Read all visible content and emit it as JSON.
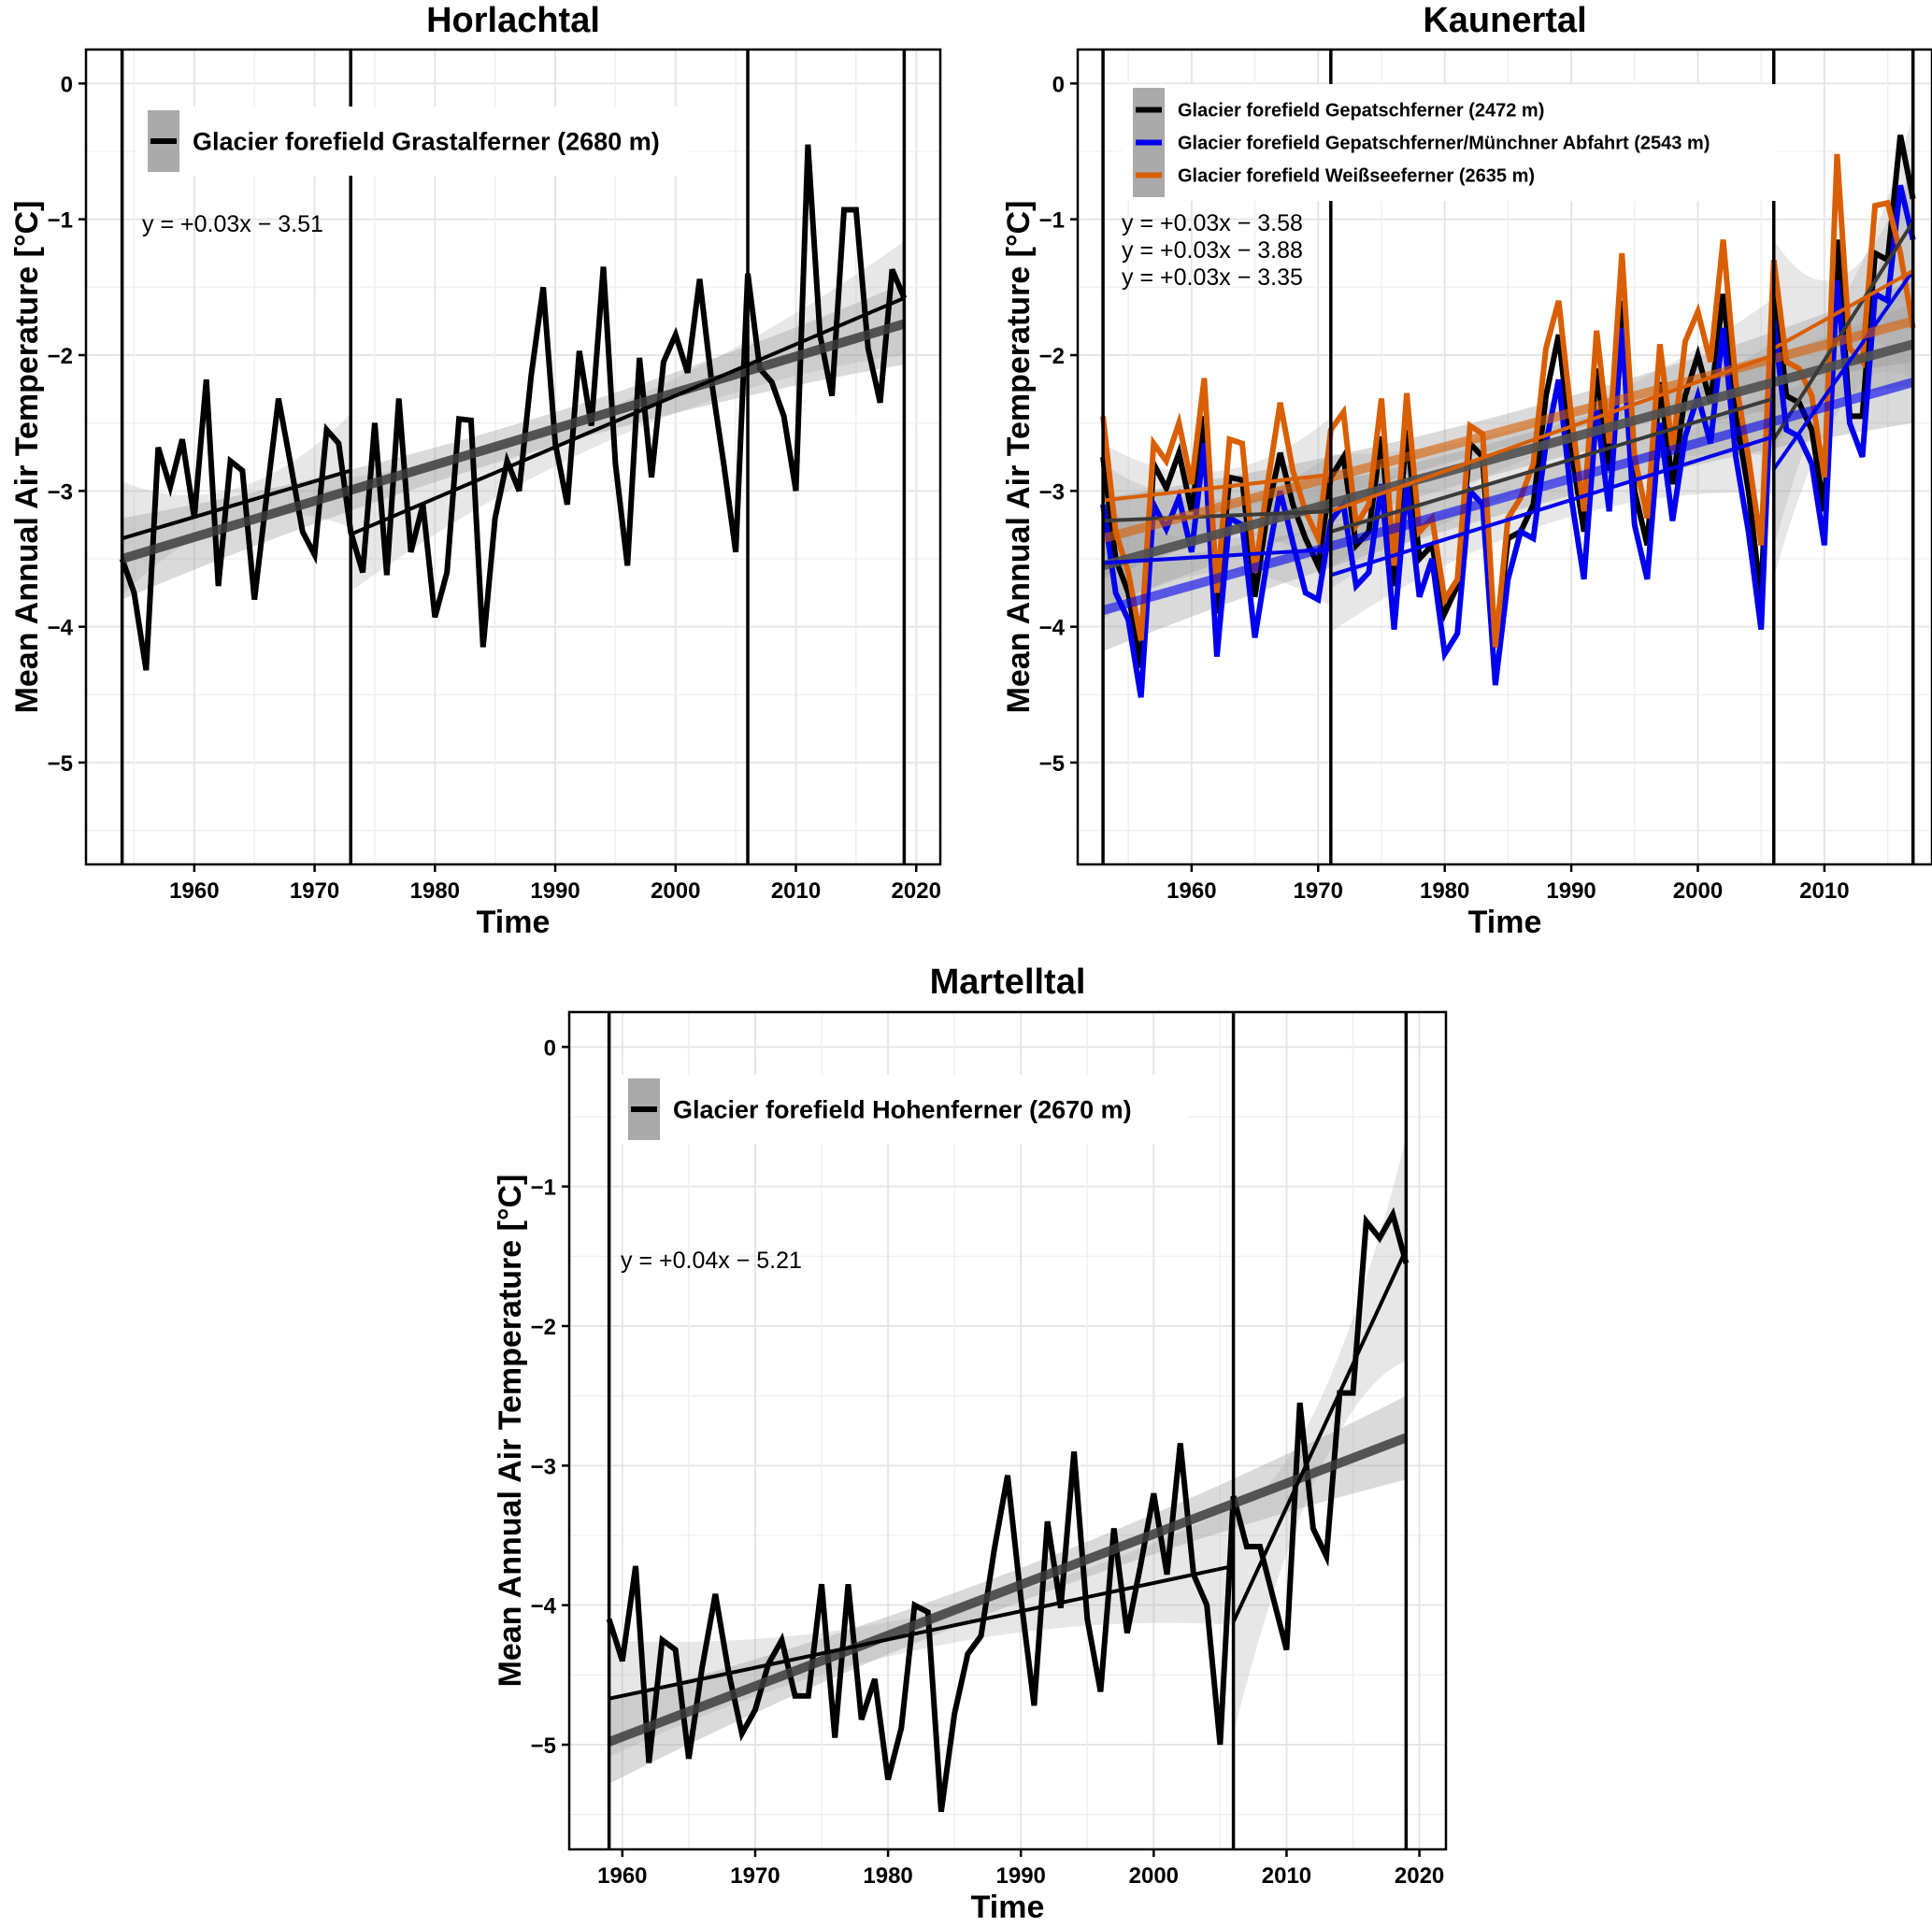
{
  "chart_data": [
    {
      "type": "line",
      "title": "Horlachtal",
      "xlabel": "Time",
      "ylabel": "Mean Annual Air Temperature [°C]",
      "xlim": [
        1951,
        2022
      ],
      "ylim": [
        -5.75,
        0.25
      ],
      "xticks": [
        1960,
        1970,
        1980,
        1990,
        2000,
        2010,
        2020
      ],
      "yticks": [
        0,
        -1,
        -2,
        -3,
        -4,
        -5
      ],
      "ytick_labels": [
        "0",
        "−1",
        "−2",
        "−3",
        "−4",
        "−5"
      ],
      "grid": true,
      "legend_position": "top-left",
      "breakpoints": [
        1954,
        1973,
        2006,
        2019
      ],
      "equations": [
        "y = +0.03x − 3.51"
      ],
      "series": [
        {
          "name": "Glacier forefield Grastalferner (2680 m)",
          "color": "#000000",
          "x": [
            1954,
            1955,
            1956,
            1957,
            1958,
            1959,
            1960,
            1961,
            1962,
            1963,
            1964,
            1965,
            1966,
            1967,
            1968,
            1969,
            1970,
            1971,
            1972,
            1973,
            1974,
            1975,
            1976,
            1977,
            1978,
            1979,
            1980,
            1981,
            1982,
            1983,
            1984,
            1985,
            1986,
            1987,
            1988,
            1989,
            1990,
            1991,
            1992,
            1993,
            1994,
            1995,
            1996,
            1997,
            1998,
            1999,
            2000,
            2001,
            2002,
            2003,
            2004,
            2005,
            2006,
            2007,
            2008,
            2009,
            2010,
            2011,
            2012,
            2013,
            2014,
            2015,
            2016,
            2017,
            2018,
            2019
          ],
          "values": [
            -3.5,
            -3.75,
            -4.32,
            -2.68,
            -2.97,
            -2.62,
            -3.2,
            -2.18,
            -3.7,
            -2.78,
            -2.85,
            -3.8,
            -3.05,
            -2.32,
            -2.8,
            -3.3,
            -3.47,
            -2.55,
            -2.65,
            -3.3,
            -3.6,
            -2.5,
            -3.62,
            -2.32,
            -3.45,
            -3.1,
            -3.93,
            -3.6,
            -2.47,
            -2.48,
            -4.15,
            -3.2,
            -2.78,
            -3.0,
            -2.15,
            -1.5,
            -2.65,
            -3.1,
            -1.97,
            -2.52,
            -1.35,
            -2.8,
            -3.55,
            -2.02,
            -2.9,
            -2.05,
            -1.85,
            -2.13,
            -1.44,
            -2.2,
            -2.8,
            -3.45,
            -1.4,
            -2.1,
            -2.2,
            -2.45,
            -3.0,
            -0.45,
            -1.85,
            -2.3,
            -0.93,
            -0.93,
            -1.95,
            -2.35,
            -1.37,
            -1.58
          ],
          "overall_trend": {
            "x": [
              1954,
              2019
            ],
            "y": [
              -3.5,
              -1.77
            ],
            "ci_halfwidth": [
              0.22,
              0.22
            ]
          },
          "segment_trends": [
            {
              "x": [
                1954,
                1973
              ],
              "y": [
                -3.35,
                -2.85
              ]
            },
            {
              "x": [
                1973,
                2019
              ],
              "y": [
                -3.32,
                -1.58
              ]
            }
          ]
        }
      ]
    },
    {
      "type": "line",
      "title": "Kaunertal",
      "xlabel": "Time",
      "ylabel": "Mean Annual Air Temperature [°C]",
      "xlim": [
        1951,
        2018.5
      ],
      "ylim": [
        -5.75,
        0.25
      ],
      "xticks": [
        1960,
        1970,
        1980,
        1990,
        2000,
        2010
      ],
      "yticks": [
        0,
        -1,
        -2,
        -3,
        -4,
        -5
      ],
      "ytick_labels": [
        "0",
        "−1",
        "−2",
        "−3",
        "−4",
        "−5"
      ],
      "grid": true,
      "legend_position": "top-left",
      "breakpoints": [
        1953,
        1971,
        2006,
        2017
      ],
      "equations": [
        "y = +0.03x − 3.58",
        "y = +0.03x − 3.88",
        "y = +0.03x − 3.35"
      ],
      "series": [
        {
          "name": "Glacier forefield Gepatschferner (2472 m)",
          "color": "#000000",
          "x": [
            1953,
            1954,
            1955,
            1956,
            1957,
            1958,
            1959,
            1960,
            1961,
            1962,
            1963,
            1964,
            1965,
            1966,
            1967,
            1968,
            1969,
            1970,
            1971,
            1972,
            1973,
            1974,
            1975,
            1976,
            1977,
            1978,
            1979,
            1980,
            1981,
            1982,
            1983,
            1984,
            1985,
            1986,
            1987,
            1988,
            1989,
            1990,
            1991,
            1992,
            1993,
            1994,
            1995,
            1996,
            1997,
            1998,
            1999,
            2000,
            2001,
            2002,
            2003,
            2004,
            2005,
            2006,
            2007,
            2008,
            2009,
            2010,
            2011,
            2012,
            2013,
            2014,
            2015,
            2016,
            2017
          ],
          "values": [
            -2.75,
            -3.5,
            -3.75,
            -4.3,
            -2.8,
            -2.98,
            -2.72,
            -3.15,
            -2.45,
            -3.9,
            -2.9,
            -2.92,
            -3.78,
            -3.15,
            -2.72,
            -3.1,
            -3.35,
            -3.55,
            -2.9,
            -2.75,
            -3.4,
            -3.3,
            -2.6,
            -3.7,
            -2.55,
            -3.5,
            -3.4,
            -3.9,
            -3.7,
            -2.65,
            -2.75,
            -4.15,
            -3.35,
            -3.3,
            -3.1,
            -2.3,
            -1.85,
            -2.7,
            -3.3,
            -2.1,
            -2.85,
            -1.6,
            -3.0,
            -3.4,
            -2.2,
            -2.95,
            -2.3,
            -2.0,
            -2.35,
            -1.55,
            -2.45,
            -3.0,
            -3.8,
            -1.45,
            -2.3,
            -2.35,
            -2.55,
            -3.15,
            -1.15,
            -2.45,
            -2.45,
            -1.25,
            -1.3,
            -0.38,
            -0.85
          ],
          "overall_trend": {
            "x": [
              1953,
              2017
            ],
            "y": [
              -3.55,
              -1.92
            ]
          },
          "segment_trends": [
            {
              "x": [
                1953,
                1971
              ],
              "y": [
                -3.22,
                -3.15
              ]
            },
            {
              "x": [
                1971,
                2006
              ],
              "y": [
                -3.3,
                -2.32
              ]
            },
            {
              "x": [
                2006,
                2017
              ],
              "y": [
                -2.62,
                -1.02
              ]
            }
          ]
        },
        {
          "name": "Glacier forefield Gepatschferner/Münchner Abfahrt (2543 m)",
          "color": "#0000ee",
          "x": [
            1953,
            1954,
            1955,
            1956,
            1957,
            1958,
            1959,
            1960,
            1961,
            1962,
            1963,
            1964,
            1965,
            1966,
            1967,
            1968,
            1969,
            1970,
            1971,
            1972,
            1973,
            1974,
            1975,
            1976,
            1977,
            1978,
            1979,
            1980,
            1981,
            1982,
            1983,
            1984,
            1985,
            1986,
            1987,
            1988,
            1989,
            1990,
            1991,
            1992,
            1993,
            1994,
            1995,
            1996,
            1997,
            1998,
            1999,
            2000,
            2001,
            2002,
            2003,
            2004,
            2005,
            2006,
            2007,
            2008,
            2009,
            2010,
            2011,
            2012,
            2013,
            2014,
            2015,
            2016,
            2017
          ],
          "values": [
            -3.1,
            -3.75,
            -3.95,
            -4.52,
            -3.1,
            -3.28,
            -3.05,
            -3.45,
            -2.65,
            -4.22,
            -3.2,
            -3.25,
            -4.08,
            -3.5,
            -3.0,
            -3.38,
            -3.75,
            -3.8,
            -3.22,
            -3.1,
            -3.7,
            -3.6,
            -2.95,
            -4.02,
            -2.95,
            -3.78,
            -3.5,
            -4.2,
            -4.05,
            -3.0,
            -3.1,
            -4.43,
            -3.65,
            -3.3,
            -3.35,
            -2.65,
            -2.18,
            -3.05,
            -3.65,
            -2.4,
            -3.15,
            -1.8,
            -3.25,
            -3.65,
            -2.5,
            -3.22,
            -2.6,
            -2.3,
            -2.65,
            -1.8,
            -2.75,
            -3.3,
            -4.02,
            -1.75,
            -2.55,
            -2.6,
            -2.8,
            -3.4,
            -1.45,
            -2.5,
            -2.75,
            -1.55,
            -1.6,
            -0.75,
            -1.15
          ],
          "overall_trend": {
            "x": [
              1953,
              2017
            ],
            "y": [
              -3.88,
              -2.2
            ]
          },
          "segment_trends": [
            {
              "x": [
                1953,
                1971
              ],
              "y": [
                -3.53,
                -3.43
              ]
            },
            {
              "x": [
                1971,
                2006
              ],
              "y": [
                -3.62,
                -2.6
              ]
            },
            {
              "x": [
                2006,
                2017
              ],
              "y": [
                -2.84,
                -1.38
              ]
            }
          ]
        },
        {
          "name": "Glacier forefield Weißseeferner (2635 m)",
          "color": "#d95f02",
          "x": [
            1953,
            1954,
            1955,
            1956,
            1957,
            1958,
            1959,
            1960,
            1961,
            1962,
            1963,
            1964,
            1965,
            1966,
            1967,
            1968,
            1969,
            1970,
            1971,
            1972,
            1973,
            1974,
            1975,
            1976,
            1977,
            1978,
            1979,
            1980,
            1981,
            1982,
            1983,
            1984,
            1985,
            1986,
            1987,
            1988,
            1989,
            1990,
            1991,
            1992,
            1993,
            1994,
            1995,
            1996,
            1997,
            1998,
            1999,
            2000,
            2001,
            2002,
            2003,
            2004,
            2005,
            2006,
            2007,
            2008,
            2009,
            2010,
            2011,
            2012,
            2013,
            2014,
            2015,
            2016,
            2017
          ],
          "values": [
            -2.45,
            -3.3,
            -3.6,
            -4.1,
            -2.65,
            -2.78,
            -2.5,
            -2.95,
            -2.17,
            -3.75,
            -2.62,
            -2.65,
            -3.6,
            -2.95,
            -2.35,
            -2.85,
            -3.15,
            -3.35,
            -2.55,
            -2.42,
            -3.25,
            -3.1,
            -2.32,
            -3.55,
            -2.28,
            -3.3,
            -3.2,
            -3.8,
            -3.65,
            -2.52,
            -2.58,
            -4.15,
            -3.2,
            -3.05,
            -2.8,
            -1.95,
            -1.6,
            -2.45,
            -3.15,
            -1.82,
            -2.65,
            -1.25,
            -2.75,
            -3.2,
            -1.92,
            -2.7,
            -1.9,
            -1.68,
            -2.05,
            -1.15,
            -2.2,
            -2.75,
            -3.4,
            -1.3,
            -2.05,
            -2.1,
            -2.3,
            -2.9,
            -0.52,
            -1.95,
            -2.05,
            -0.9,
            -0.88,
            -1.25,
            -1.8
          ],
          "overall_trend": {
            "x": [
              1953,
              2017
            ],
            "y": [
              -3.35,
              -1.75
            ]
          },
          "segment_trends": [
            {
              "x": [
                1953,
                1971
              ],
              "y": [
                -3.07,
                -2.88
              ]
            },
            {
              "x": [
                1971,
                2006
              ],
              "y": [
                -3.15,
                -2.0
              ]
            },
            {
              "x": [
                2006,
                2017
              ],
              "y": [
                -1.95,
                -1.38
              ]
            }
          ]
        }
      ]
    },
    {
      "type": "line",
      "title": "Martelltal",
      "xlabel": "Time",
      "ylabel": "Mean Annual Air Temperature [°C]",
      "xlim": [
        1956,
        2022
      ],
      "ylim": [
        -5.75,
        0.25
      ],
      "xticks": [
        1960,
        1970,
        1980,
        1990,
        2000,
        2010,
        2020
      ],
      "yticks": [
        0,
        -1,
        -2,
        -3,
        -4,
        -5
      ],
      "ytick_labels": [
        "0",
        "−1",
        "−2",
        "−3",
        "−4",
        "−5"
      ],
      "grid": true,
      "legend_position": "top-left",
      "breakpoints": [
        1959,
        2006,
        2019
      ],
      "equations": [
        "y = +0.04x − 5.21"
      ],
      "series": [
        {
          "name": "Glacier forefield Hohenferner (2670 m)",
          "color": "#000000",
          "x": [
            1959,
            1960,
            1961,
            1962,
            1963,
            1964,
            1965,
            1966,
            1967,
            1968,
            1969,
            1970,
            1971,
            1972,
            1973,
            1974,
            1975,
            1976,
            1977,
            1978,
            1979,
            1980,
            1981,
            1982,
            1983,
            1984,
            1985,
            1986,
            1987,
            1988,
            1989,
            1990,
            1991,
            1992,
            1993,
            1994,
            1995,
            1996,
            1997,
            1998,
            1999,
            2000,
            2001,
            2002,
            2003,
            2004,
            2005,
            2006,
            2007,
            2008,
            2009,
            2010,
            2011,
            2012,
            2013,
            2014,
            2015,
            2016,
            2017,
            2018,
            2019
          ],
          "values": [
            -4.1,
            -4.4,
            -3.72,
            -5.13,
            -4.25,
            -4.32,
            -5.1,
            -4.45,
            -3.92,
            -4.48,
            -4.92,
            -4.75,
            -4.42,
            -4.25,
            -4.65,
            -4.65,
            -3.85,
            -4.95,
            -3.85,
            -4.82,
            -4.53,
            -5.25,
            -4.88,
            -4.0,
            -4.05,
            -5.48,
            -4.78,
            -4.35,
            -4.22,
            -3.6,
            -3.07,
            -3.95,
            -4.72,
            -3.4,
            -4.02,
            -2.9,
            -4.1,
            -4.62,
            -3.45,
            -4.2,
            -3.72,
            -3.2,
            -3.78,
            -2.84,
            -3.78,
            -4.0,
            -5.0,
            -3.22,
            -3.58,
            -3.58,
            -3.95,
            -4.32,
            -2.55,
            -3.45,
            -3.65,
            -2.48,
            -2.48,
            -1.25,
            -1.37,
            -1.2,
            -1.55
          ],
          "overall_trend": {
            "x": [
              1959,
              2019
            ],
            "y": [
              -4.98,
              -2.8
            ]
          },
          "segment_trends": [
            {
              "x": [
                1959,
                2006
              ],
              "y": [
                -4.67,
                -3.72
              ]
            },
            {
              "x": [
                2006,
                2019
              ],
              "y": [
                -4.12,
                -1.45
              ]
            }
          ]
        }
      ]
    }
  ]
}
